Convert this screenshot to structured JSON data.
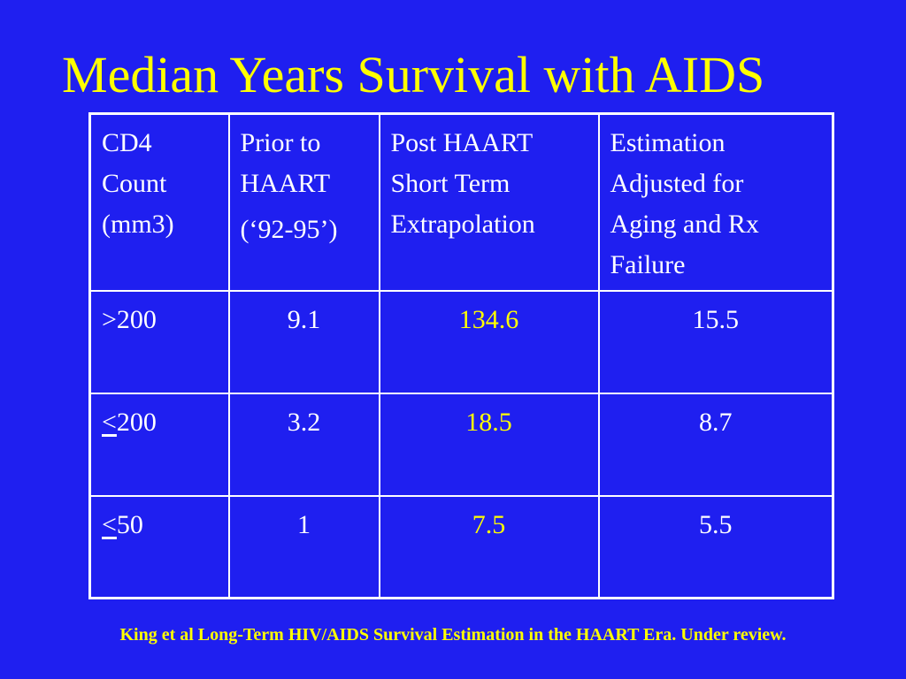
{
  "slide": {
    "title": "Median Years Survival with AIDS",
    "citation": "King et al Long-Term HIV/AIDS Survival Estimation in the HAART Era.  Under review.",
    "colors": {
      "background": "#1f1ff0",
      "title": "#ffff00",
      "text": "#ffffff",
      "highlight": "#ffff00"
    }
  },
  "table": {
    "headers": {
      "cd4": [
        "CD4",
        "Count",
        "(mm3)"
      ],
      "prior": [
        "Prior to",
        "HAART",
        "(‘92-95’)"
      ],
      "post": [
        "Post HAART",
        "Short Term",
        "Extrapolation"
      ],
      "estimation": [
        "Estimation",
        "Adjusted for",
        "Aging and Rx",
        "Failure"
      ]
    },
    "rows": [
      {
        "cmp": ">",
        "cmp_underlined": false,
        "cd4": "200",
        "prior": "9.1",
        "post": "134.6",
        "estimation": "15.5"
      },
      {
        "cmp": "<",
        "cmp_underlined": true,
        "cd4": "200",
        "prior": "3.2",
        "post": "18.5",
        "estimation": "8.7"
      },
      {
        "cmp": "<",
        "cmp_underlined": true,
        "cd4": "50",
        "prior": "1",
        "post": "7.5",
        "estimation": "5.5"
      }
    ]
  }
}
